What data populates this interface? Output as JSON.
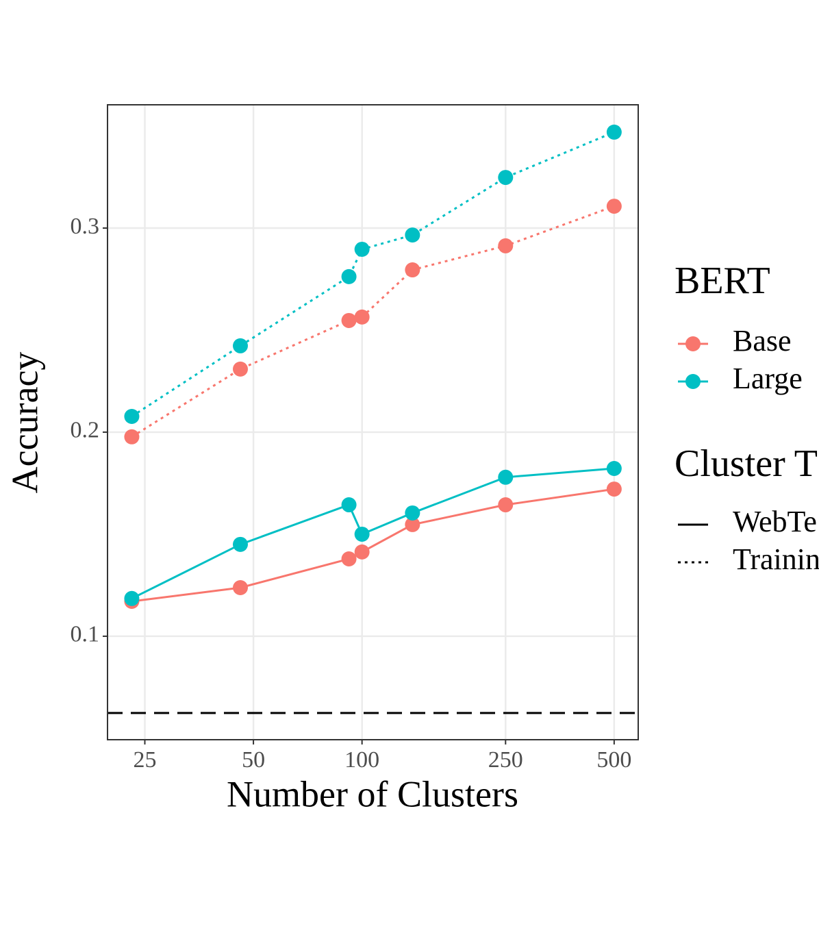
{
  "chart_data": {
    "type": "line",
    "xlabel": "Number of Clusters",
    "ylabel": "Accuracy",
    "x": [
      23,
      46,
      92,
      100,
      138,
      250,
      500
    ],
    "xlim": [
      19.7,
      583
    ],
    "xticks": [
      25,
      50,
      100,
      250,
      500
    ],
    "xscale": "log",
    "ylim": [
      0.0493,
      0.3604
    ],
    "yticks": [
      0.1,
      0.2,
      0.3
    ],
    "grid": true,
    "hline": {
      "value": 0.0624,
      "color": "#000000",
      "dash": "dashed"
    },
    "legend": {
      "bert_title": "BERT",
      "bert_entries": [
        {
          "name": "Base",
          "color": "#F8766D"
        },
        {
          "name": "Large",
          "color": "#00BFC4"
        }
      ],
      "cluster_title": "Cluster T",
      "cluster_entries": [
        {
          "name": "WebTe",
          "dash": "solid"
        },
        {
          "name": "Trainin",
          "dash": "dotted"
        }
      ]
    },
    "series": [
      {
        "bert": 0,
        "cluster": 1,
        "values": [
          0.1977,
          0.2309,
          0.2547,
          0.2564,
          0.2795,
          0.2913,
          0.3107
        ]
      },
      {
        "bert": 1,
        "cluster": 1,
        "values": [
          0.2077,
          0.2423,
          0.2762,
          0.2896,
          0.2966,
          0.3248,
          0.347
        ]
      },
      {
        "bert": 0,
        "cluster": 0,
        "values": [
          0.1171,
          0.1238,
          0.1379,
          0.1413,
          0.1547,
          0.1644,
          0.1721
        ]
      },
      {
        "bert": 1,
        "cluster": 0,
        "values": [
          0.1185,
          0.145,
          0.1644,
          0.15,
          0.1604,
          0.1779,
          0.1822
        ]
      }
    ]
  }
}
